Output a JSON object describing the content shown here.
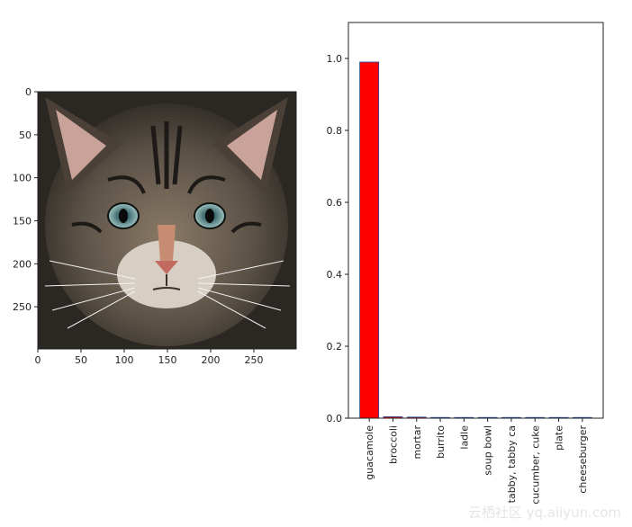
{
  "chart_data": [
    {
      "type": "image",
      "xlim": [
        0,
        299
      ],
      "ylim": [
        299,
        0
      ],
      "x_ticks": [
        0,
        50,
        100,
        150,
        200,
        250
      ],
      "y_ticks": [
        0,
        50,
        100,
        150,
        200,
        250
      ],
      "x_tick_labels": [
        "0",
        "50",
        "100",
        "150",
        "200",
        "250"
      ],
      "y_tick_labels": [
        "0",
        "50",
        "100",
        "150",
        "200",
        "250"
      ]
    },
    {
      "type": "bar",
      "categories": [
        "guacamole",
        "broccoli",
        "mortar",
        "burrito",
        "ladle",
        "soup bowl",
        "tabby, tabby ca",
        "cucumber, cuke",
        "plate",
        "cheeseburger"
      ],
      "values": [
        0.99,
        0.004,
        0.003,
        0.001,
        0.0005,
        0.0005,
        0.0005,
        0.0004,
        0.0003,
        0.0003
      ],
      "ylim": [
        0,
        1.1
      ],
      "y_ticks": [
        0.0,
        0.2,
        0.4,
        0.6,
        0.8,
        1.0
      ],
      "y_tick_labels": [
        "0.0",
        "0.2",
        "0.4",
        "0.6",
        "0.8",
        "1.0"
      ],
      "bar_color": "#ff0000",
      "edge_color": "#1f4e9e"
    }
  ],
  "watermark": "云栖社区 yq.aliyun.com"
}
